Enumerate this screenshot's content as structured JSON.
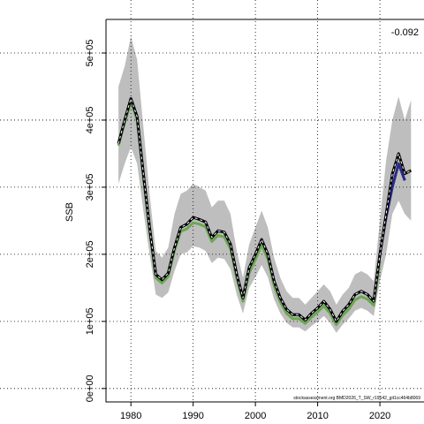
{
  "chart_data": {
    "type": "line",
    "ylabel": "SSB",
    "annotation": "-0.092",
    "footnote": "stockassessment.org BMD2026_T_SW_r19542_git1cc464b8069",
    "x": [
      1978,
      1979,
      1980,
      1981,
      1982,
      1983,
      1984,
      1985,
      1986,
      1987,
      1988,
      1989,
      1990,
      1991,
      1992,
      1993,
      1994,
      1995,
      1996,
      1997,
      1998,
      1999,
      2000,
      2001,
      2002,
      2003,
      2004,
      2005,
      2006,
      2007,
      2008,
      2009,
      2010,
      2011,
      2012,
      2013,
      2014,
      2015,
      2016,
      2017,
      2018,
      2019,
      2020,
      2021,
      2022,
      2023,
      2024,
      2025
    ],
    "upper": [
      450000,
      480000,
      525000,
      490000,
      390000,
      290000,
      205000,
      195000,
      210000,
      260000,
      290000,
      295000,
      305000,
      300000,
      295000,
      270000,
      280000,
      280000,
      260000,
      205000,
      165000,
      215000,
      240000,
      265000,
      240000,
      195000,
      165000,
      145000,
      135000,
      135000,
      125000,
      135000,
      145000,
      155000,
      145000,
      125000,
      140000,
      150000,
      170000,
      175000,
      170000,
      160000,
      250000,
      340000,
      400000,
      435000,
      400000,
      430000
    ],
    "lower": [
      305000,
      335000,
      360000,
      335000,
      265000,
      200000,
      140000,
      135000,
      143000,
      175000,
      200000,
      203000,
      212000,
      210000,
      205000,
      187000,
      195000,
      193000,
      178000,
      140000,
      112000,
      150000,
      166000,
      184000,
      166000,
      133000,
      112000,
      98000,
      91000,
      91000,
      85000,
      93000,
      100000,
      108000,
      98000,
      83000,
      95000,
      104000,
      116000,
      120000,
      116000,
      108000,
      160000,
      200000,
      260000,
      280000,
      260000,
      250000
    ],
    "band_color": "#bebebe",
    "series": [
      {
        "color": "#6aa84f",
        "dash": false,
        "values": [
          362000,
          396000,
          427000,
          400000,
          315000,
          235000,
          165000,
          157000,
          167000,
          205000,
          234000,
          238000,
          247000,
          245000,
          241000,
          219000,
          228000,
          226000,
          208000,
          164000,
          130000,
          172000,
          192000,
          214000,
          193000,
          153000,
          129000,
          112000,
          104000,
          104000,
          97000,
          106000,
          114000,
          123000,
          112000,
          95000,
          109000,
          118000,
          132000,
          137000,
          133000,
          124000,
          190000,
          null,
          null,
          null,
          null,
          null
        ]
      },
      {
        "color": "#2b2a8c",
        "dash": false,
        "values": [
          365000,
          400000,
          432000,
          405000,
          320000,
          240000,
          170000,
          162000,
          172000,
          210000,
          240000,
          245000,
          255000,
          252000,
          248000,
          225000,
          235000,
          233000,
          215000,
          170000,
          135000,
          180000,
          200000,
          222000,
          200000,
          160000,
          135000,
          118000,
          110000,
          110000,
          102000,
          112000,
          120000,
          130000,
          118000,
          100000,
          115000,
          125000,
          140000,
          145000,
          140000,
          130000,
          200000,
          255000,
          300000,
          335000,
          310000,
          null
        ]
      },
      {
        "color": "#000000",
        "dash": true,
        "values": [
          365000,
          400000,
          432000,
          405000,
          320000,
          240000,
          170000,
          162000,
          172000,
          210000,
          240000,
          245000,
          255000,
          252000,
          248000,
          225000,
          235000,
          233000,
          215000,
          170000,
          135000,
          180000,
          200000,
          222000,
          200000,
          160000,
          135000,
          118000,
          110000,
          110000,
          102000,
          112000,
          120000,
          130000,
          118000,
          100000,
          115000,
          125000,
          140000,
          145000,
          140000,
          130000,
          200000,
          260000,
          320000,
          350000,
          320000,
          325000
        ]
      }
    ],
    "xlim": [
      1976,
      2026.8
    ],
    "ylim": [
      -20000,
      550000
    ],
    "xticks": [
      1980,
      1990,
      2000,
      2010,
      2020
    ],
    "yticks": [
      {
        "value": 0,
        "label": "0e+00"
      },
      {
        "value": 100000,
        "label": "1e+05"
      },
      {
        "value": 200000,
        "label": "2e+05"
      },
      {
        "value": 300000,
        "label": "3e+05"
      },
      {
        "value": 400000,
        "label": "4e+05"
      },
      {
        "value": 500000,
        "label": "5e+05"
      }
    ],
    "grid": true
  }
}
